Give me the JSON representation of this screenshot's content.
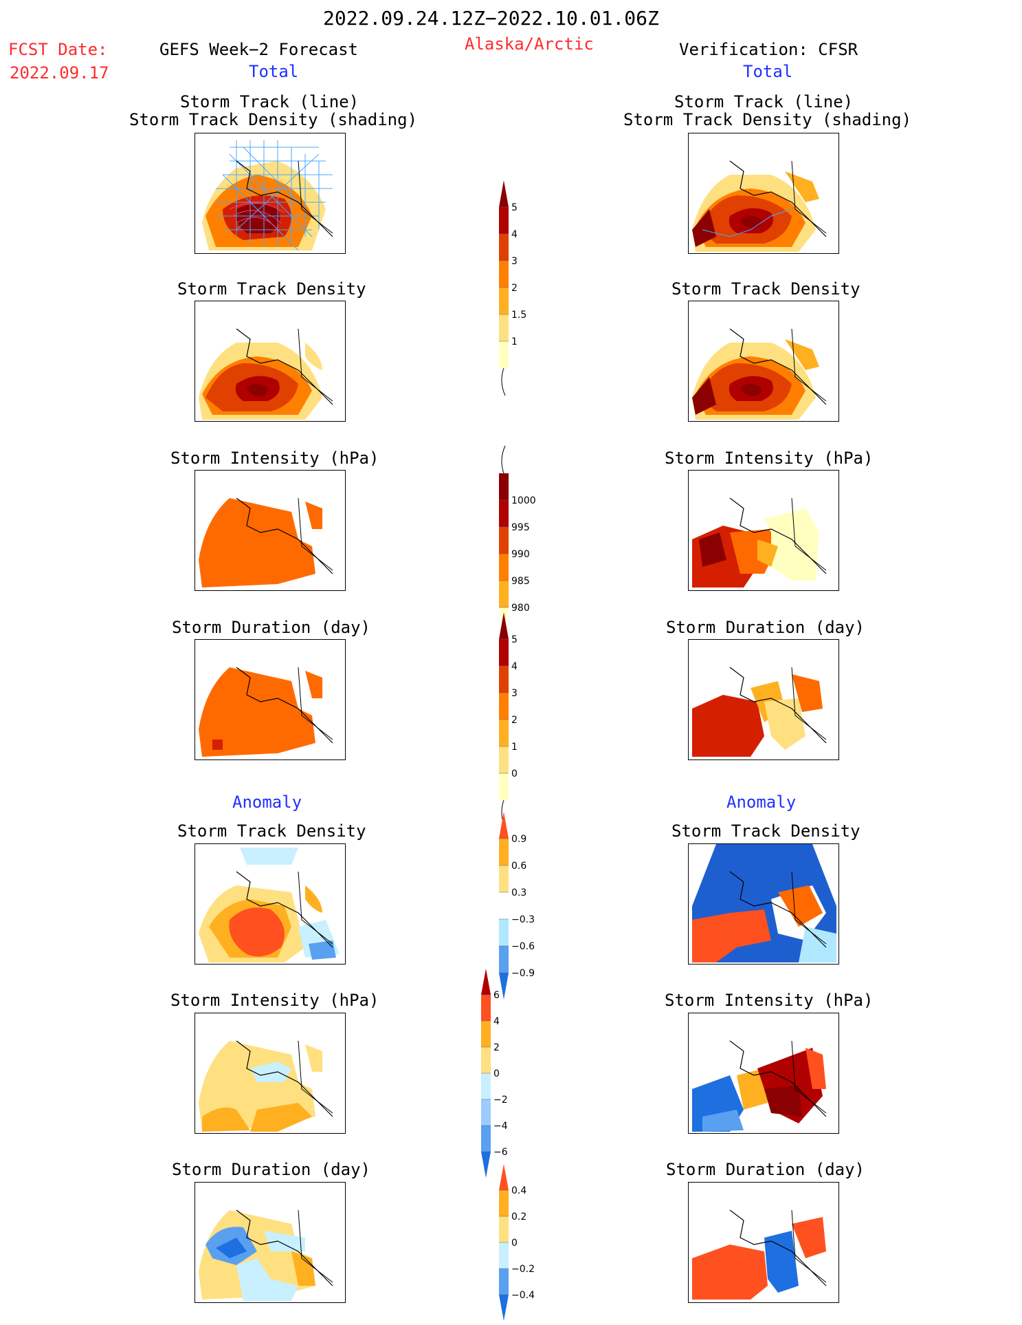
{
  "header": {
    "period": "2022.09.24.12Z−2022.10.01.06Z",
    "fcst_label": "FCST Date:",
    "fcst_date": "2022.09.17",
    "left_title": "GEFS Week−2 Forecast",
    "region": "Alaska/Arctic",
    "right_title": "Verification: CFSR",
    "left_sub": "Total",
    "right_sub": "Total"
  },
  "sections": {
    "anomaly_left": "Anomaly",
    "anomaly_right": "Anomaly"
  },
  "panels": {
    "titles": [
      {
        "line1": "Storm Track (line)",
        "line2": "Storm Track Density (shading)"
      },
      {
        "line1": "Storm Track Density"
      },
      {
        "line1": "Storm Intensity (hPa)"
      },
      {
        "line1": "Storm Duration (day)"
      },
      {
        "line1": "Storm Track Density"
      },
      {
        "line1": "Storm Intensity (hPa)"
      },
      {
        "line1": "Storm Duration (day)"
      }
    ]
  },
  "colorbars": [
    {
      "labels": [
        "5",
        "4",
        "3",
        "2",
        "1.5",
        "1"
      ],
      "colors": [
        "#ffffc0",
        "#ffe080",
        "#ffb020",
        "#ff8000",
        "#e04000",
        "#b00000",
        "#8b0000"
      ]
    },
    {
      "labels": [
        "1000",
        "995",
        "990",
        "985",
        "980"
      ],
      "colors": [
        "#8b0000",
        "#b00000",
        "#e04000",
        "#ff8000",
        "#ffb020",
        "#ffffc0"
      ]
    },
    {
      "labels": [
        "5",
        "4",
        "3",
        "2",
        "1",
        "0"
      ],
      "colors": [
        "#ffffc0",
        "#ffe080",
        "#ffb020",
        "#ff8000",
        "#e04000",
        "#b00000",
        "#8b0000"
      ]
    },
    {
      "labels": [
        "0.9",
        "0.6",
        "0.3",
        "−0.3",
        "−0.6",
        "−0.9"
      ],
      "colors": [
        "#1e6fe0",
        "#5aa0f0",
        "#b0e8ff",
        "#ffffff",
        "#ffe080",
        "#ffb020",
        "#ff5020"
      ]
    },
    {
      "labels": [
        "6",
        "4",
        "2",
        "0",
        "−2",
        "−4",
        "−6"
      ],
      "colors": [
        "#1e6fe0",
        "#5aa0f0",
        "#9cccff",
        "#c8f0ff",
        "#ffe080",
        "#ffb020",
        "#ff5020",
        "#b00000"
      ]
    },
    {
      "labels": [
        "0.4",
        "0.2",
        "0",
        "−0.2",
        "−0.4"
      ],
      "colors": [
        "#1e6fe0",
        "#5aa0f0",
        "#c8f0ff",
        "#ffe080",
        "#ffb020",
        "#ff5020"
      ]
    }
  ],
  "colors": {
    "dark_red": "#8b0000",
    "red": "#d42000",
    "orange": "#ff6a00",
    "light_orange": "#ffb020",
    "yellow": "#ffe080",
    "pale_yellow": "#ffffc0",
    "light_blue": "#b0e8ff",
    "blue": "#1e5fd0",
    "track_line": "#4aa8ff"
  }
}
